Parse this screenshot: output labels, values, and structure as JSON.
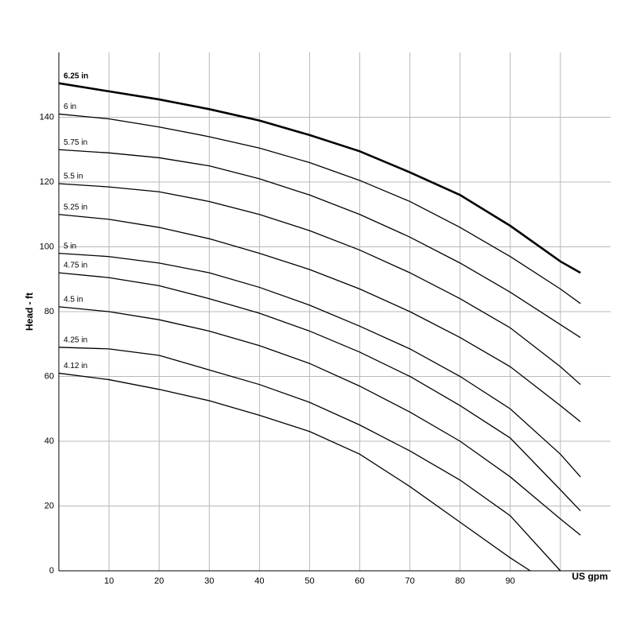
{
  "chart_data": {
    "type": "line",
    "xlabel": "US gpm",
    "ylabel": "Head - ft",
    "xlim": [
      0,
      110
    ],
    "ylim": [
      0,
      160
    ],
    "xticks": [
      10,
      20,
      30,
      40,
      50,
      60,
      70,
      80,
      90
    ],
    "xgrid": [
      10,
      20,
      30,
      40,
      50,
      60,
      70,
      80,
      90,
      100
    ],
    "yticks": [
      0,
      20,
      40,
      60,
      80,
      100,
      120,
      140
    ],
    "grid": true,
    "series": [
      {
        "name": "6.25 in",
        "color": "#000000",
        "width": 2.6,
        "x": [
          0,
          10,
          20,
          30,
          40,
          50,
          60,
          70,
          80,
          90,
          100,
          104
        ],
        "values": [
          150.5,
          148,
          145.5,
          142.5,
          139,
          134.5,
          129.5,
          123,
          116,
          106.5,
          95.5,
          92
        ]
      },
      {
        "name": "6 in",
        "color": "#000000",
        "width": 1.3,
        "x": [
          0,
          10,
          20,
          30,
          40,
          50,
          60,
          70,
          80,
          90,
          100,
          104
        ],
        "values": [
          141,
          139.5,
          137,
          134,
          130.5,
          126,
          120.5,
          114,
          106,
          97,
          87,
          82.5
        ]
      },
      {
        "name": "5.75 in",
        "color": "#000000",
        "width": 1.3,
        "x": [
          0,
          10,
          20,
          30,
          40,
          50,
          60,
          70,
          80,
          90,
          100,
          104
        ],
        "values": [
          130,
          129,
          127.5,
          125,
          121,
          116,
          110,
          103,
          95,
          86,
          76,
          72
        ]
      },
      {
        "name": "5.5 in",
        "color": "#000000",
        "width": 1.3,
        "x": [
          0,
          10,
          20,
          30,
          40,
          50,
          60,
          70,
          80,
          90,
          100,
          104
        ],
        "values": [
          119.5,
          118.5,
          117,
          114,
          110,
          105,
          99,
          92,
          84,
          75,
          63,
          57.5
        ]
      },
      {
        "name": "5.25 in",
        "color": "#000000",
        "width": 1.3,
        "x": [
          0,
          10,
          20,
          30,
          40,
          50,
          60,
          70,
          80,
          90,
          100,
          104
        ],
        "values": [
          110,
          108.5,
          106,
          102.5,
          98,
          93,
          87,
          80,
          72,
          63,
          51,
          46
        ]
      },
      {
        "name": "5 in",
        "color": "#000000",
        "width": 1.3,
        "x": [
          0,
          10,
          20,
          30,
          40,
          50,
          60,
          70,
          80,
          90,
          100,
          104
        ],
        "values": [
          98,
          97,
          95,
          92,
          87.5,
          82,
          75.5,
          68.5,
          60,
          50,
          36,
          29
        ]
      },
      {
        "name": "4.75 in",
        "color": "#000000",
        "width": 1.3,
        "x": [
          0,
          10,
          20,
          30,
          40,
          50,
          60,
          70,
          80,
          90,
          100,
          104
        ],
        "values": [
          92,
          90.5,
          88,
          84,
          79.5,
          74,
          67.5,
          60,
          51,
          41,
          25,
          18.5
        ]
      },
      {
        "name": "4.5 in",
        "color": "#000000",
        "width": 1.3,
        "x": [
          0,
          10,
          20,
          30,
          40,
          50,
          60,
          70,
          80,
          90,
          100,
          104
        ],
        "values": [
          81.5,
          80,
          77.5,
          74,
          69.5,
          64,
          57,
          49,
          40,
          29,
          16,
          11
        ]
      },
      {
        "name": "4.25 in",
        "color": "#000000",
        "width": 1.3,
        "x": [
          0,
          10,
          20,
          30,
          40,
          50,
          60,
          70,
          80,
          90,
          100
        ],
        "values": [
          69,
          68.5,
          66.5,
          62,
          57.5,
          52,
          45,
          37,
          28,
          17,
          0
        ]
      },
      {
        "name": "4.12 in",
        "color": "#000000",
        "width": 1.3,
        "x": [
          0,
          10,
          20,
          30,
          40,
          50,
          60,
          70,
          80,
          90,
          94
        ],
        "values": [
          61,
          59,
          56,
          52.5,
          48,
          43,
          36,
          26,
          15,
          4,
          0
        ]
      }
    ]
  }
}
